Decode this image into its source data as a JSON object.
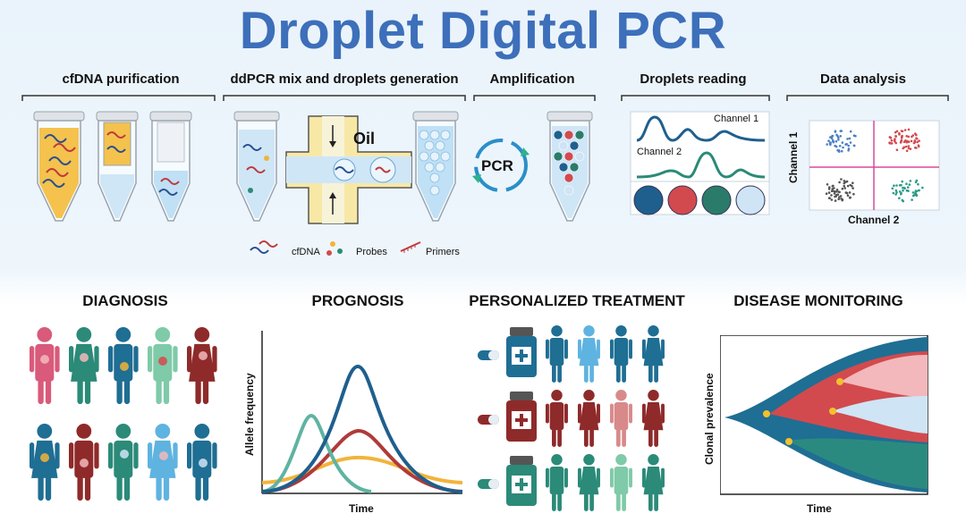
{
  "title": "Droplet Digital PCR",
  "workflow": {
    "steps": [
      {
        "label": "cfDNA purification"
      },
      {
        "label": "ddPCR mix and droplets generation"
      },
      {
        "label": "Amplification"
      },
      {
        "label": "Droplets reading"
      },
      {
        "label": "Data analysis"
      }
    ],
    "oil_label": "Oil",
    "pcr_label": "PCR",
    "legend": {
      "cfdna": "cfDNA",
      "probes": "Probes",
      "primers": "Primers"
    },
    "reading": {
      "channel1": "Channel 1",
      "channel2": "Channel 2",
      "droplet_colors": [
        "#1f5f8e",
        "#d24a4e",
        "#2b7b6a",
        "#cfe4f5"
      ]
    },
    "analysis": {
      "y_label": "Channel 1",
      "x_label": "Channel 2"
    }
  },
  "applications": {
    "diagnosis": {
      "label": "DIAGNOSIS"
    },
    "prognosis": {
      "label": "PROGNOSIS",
      "y_label": "Allele frequency",
      "x_label": "Time"
    },
    "treatment": {
      "label": "PERSONALIZED TREATMENT"
    },
    "monitoring": {
      "label": "DISEASE MONITORING",
      "y_label": "Clonal prevalence",
      "x_label": "Time"
    }
  },
  "colors": {
    "title": "#3d6fba",
    "navy": "#1f5f8e",
    "red": "#b03a3a",
    "teal": "#2b8a78",
    "pink": "#d95a7a",
    "light_teal": "#6ec3a8",
    "light_blue": "#7fc0e6",
    "yellow": "#f2b43a"
  }
}
